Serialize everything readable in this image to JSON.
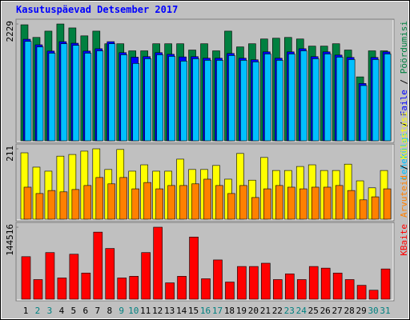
{
  "chart_data": [
    {
      "type": "bar",
      "title": "Kasutuspäevad Detsember 2017",
      "ylim": [
        0,
        2229
      ],
      "yticks": [
        2229
      ],
      "legend_separator": " / ",
      "series": [
        {
          "name": "Pöördumisi",
          "color": "#008040",
          "values": [
            2214,
            1973,
            2093,
            2229,
            2154,
            2003,
            2093,
            1852,
            1852,
            1717,
            1717,
            1852,
            1852,
            1852,
            1732,
            1852,
            1717,
            2093,
            1792,
            1852,
            1943,
            1958,
            1973,
            1943,
            1807,
            1807,
            1852,
            1732,
            1220,
            1717,
            1717
          ]
        },
        {
          "name": "Faile",
          "color": "#0000ff",
          "values": [
            1938,
            1832,
            1712,
            1892,
            1862,
            1712,
            1757,
            1892,
            1682,
            1596,
            1606,
            1682,
            1651,
            1601,
            1606,
            1576,
            1576,
            1667,
            1576,
            1546,
            1697,
            1576,
            1697,
            1757,
            1606,
            1697,
            1636,
            1591,
            1094,
            1591,
            1697
          ]
        },
        {
          "name": "Lehekülgi",
          "color": "#00c0ff",
          "values": [
            1898,
            1792,
            1672,
            1852,
            1822,
            1672,
            1717,
            1852,
            1642,
            1476,
            1566,
            1642,
            1611,
            1521,
            1566,
            1536,
            1536,
            1627,
            1536,
            1506,
            1657,
            1536,
            1657,
            1717,
            1566,
            1657,
            1596,
            1551,
            1054,
            1551,
            1657
          ]
        }
      ]
    },
    {
      "type": "bar",
      "ylim": [
        0,
        211
      ],
      "yticks": [
        211
      ],
      "legend_separator": " / ",
      "series": [
        {
          "name": "Külastusi",
          "color": "#ffff00",
          "values": [
            199,
            156,
            144,
            189,
            194,
            204,
            211,
            149,
            209,
            144,
            163,
            144,
            144,
            180,
            149,
            149,
            161,
            120,
            197,
            117,
            185,
            146,
            146,
            158,
            163,
            146,
            146,
            165,
            115,
            94,
            146
          ]
        },
        {
          "name": "Arvuteid",
          "color": "#ff8000",
          "values": [
            96,
            77,
            86,
            82,
            89,
            101,
            125,
            106,
            125,
            91,
            110,
            91,
            101,
            101,
            106,
            120,
            101,
            77,
            101,
            65,
            91,
            101,
            96,
            91,
            96,
            96,
            101,
            86,
            58,
            67,
            91
          ]
        }
      ]
    },
    {
      "type": "bar",
      "ylim": [
        0,
        144516
      ],
      "yticks": [
        144516
      ],
      "legend_separator": " / ",
      "categories": [
        "1",
        "2",
        "3",
        "4",
        "5",
        "6",
        "7",
        "8",
        "9",
        "10",
        "11",
        "12",
        "13",
        "14",
        "15",
        "16",
        "17",
        "18",
        "19",
        "20",
        "21",
        "22",
        "23",
        "24",
        "25",
        "26",
        "27",
        "28",
        "29",
        "30",
        "31"
      ],
      "highlight_indices": [
        1,
        2,
        8,
        9,
        15,
        16,
        22,
        23,
        29,
        30
      ],
      "highlight_color": "#008080",
      "series": [
        {
          "name": "KBaite",
          "color": "#ff0000",
          "values": [
            85394,
            39413,
            93605,
            42697,
            90321,
            52550,
            134660,
            101816,
            42697,
            45982,
            93605,
            144516,
            32844,
            45982,
            124807,
            41055,
            78826,
            34486,
            65688,
            65688,
            72257,
            39413,
            50908,
            39413,
            65688,
            62404,
            52550,
            39413,
            27917,
            18064,
            60761
          ]
        }
      ]
    }
  ]
}
